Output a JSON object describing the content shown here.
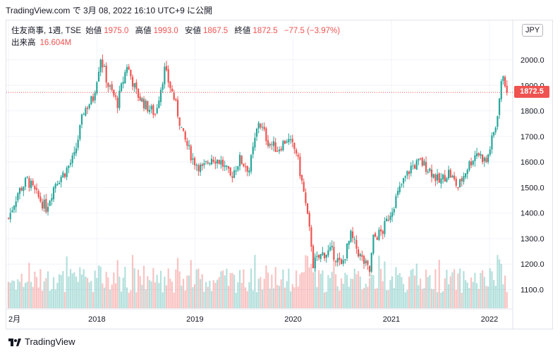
{
  "caption": "TradingView.com で 3月 08, 2022 16:10 UTC+9 に公開",
  "legend": {
    "symbol": "住友商事, 1週, TSE",
    "open_label": "始値",
    "open": "1975.0",
    "high_label": "高値",
    "high": "1993.0",
    "low_label": "安値",
    "low": "1867.5",
    "close_label": "終値",
    "close": "1872.5",
    "change": "−77.5 (−3.97%)",
    "volume_label": "出来高",
    "volume": "16.604M"
  },
  "currency": "JPY",
  "last_price": "1872.5",
  "footer_brand": "TradingView",
  "colors": {
    "up": "#26a69a",
    "down": "#ef5350",
    "grid": "#f0f3fa",
    "axis_text": "#131722"
  },
  "chart_data": {
    "type": "candlestick",
    "y_axis_side": "right",
    "y_ticks": [
      "1100.0",
      "1200.0",
      "1300.0",
      "1400.0",
      "1500.0",
      "1600.0",
      "1700.0",
      "1800.0",
      "1900.0",
      "2000.0"
    ],
    "ylim": [
      1045,
      2160
    ],
    "x_ticks": [
      "2月",
      "2018",
      "2019",
      "2020",
      "2021",
      "2022"
    ],
    "x_tick_dates": [
      "2017-02-06",
      "2018-01-01",
      "2019-01-01",
      "2020-01-01",
      "2021-01-01",
      "2022-01-01"
    ],
    "last_price_line": 1872.5,
    "close_series": {
      "dates": [
        "2017-02-06",
        "2017-03-13",
        "2017-04-17",
        "2017-05-22",
        "2017-06-26",
        "2017-07-31",
        "2017-09-04",
        "2017-10-09",
        "2017-11-13",
        "2017-12-18",
        "2018-01-15",
        "2018-02-12",
        "2018-03-19",
        "2018-04-23",
        "2018-05-28",
        "2018-07-02",
        "2018-08-06",
        "2018-09-10",
        "2018-10-15",
        "2018-11-19",
        "2018-12-24",
        "2019-01-28",
        "2019-03-04",
        "2019-04-08",
        "2019-05-13",
        "2019-06-17",
        "2019-07-22",
        "2019-08-26",
        "2019-09-30",
        "2019-11-04",
        "2019-12-09",
        "2020-01-13",
        "2020-02-10",
        "2020-03-09",
        "2020-03-16",
        "2020-04-20",
        "2020-05-25",
        "2020-06-29",
        "2020-08-03",
        "2020-09-07",
        "2020-10-12",
        "2020-10-26",
        "2020-11-30",
        "2021-01-04",
        "2021-02-08",
        "2021-03-15",
        "2021-04-19",
        "2021-05-24",
        "2021-06-28",
        "2021-08-02",
        "2021-09-06",
        "2021-10-11",
        "2021-11-15",
        "2021-12-20",
        "2022-01-24",
        "2022-02-07",
        "2022-02-21",
        "2022-03-07"
      ],
      "values": [
        1380,
        1480,
        1530,
        1470,
        1420,
        1520,
        1560,
        1620,
        1800,
        1850,
        2010,
        1900,
        1830,
        1980,
        1870,
        1820,
        1790,
        1960,
        1850,
        1700,
        1610,
        1570,
        1620,
        1600,
        1540,
        1610,
        1570,
        1760,
        1680,
        1650,
        1690,
        1640,
        1480,
        1280,
        1200,
        1240,
        1250,
        1190,
        1310,
        1230,
        1170,
        1300,
        1330,
        1420,
        1510,
        1580,
        1600,
        1570,
        1520,
        1560,
        1500,
        1580,
        1640,
        1600,
        1740,
        1850,
        1950,
        1872.5
      ]
    }
  }
}
